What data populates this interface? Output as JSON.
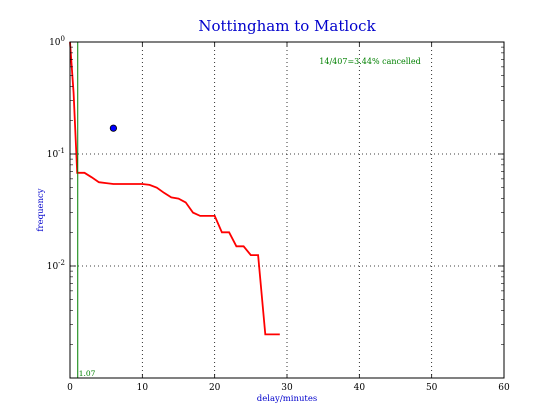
{
  "chart_data": {
    "type": "line",
    "title": "Nottingham to Matlock",
    "xlabel": "delay/minutes",
    "ylabel": "frequency",
    "xlim": [
      0,
      60
    ],
    "ylim": [
      0.001,
      1.0
    ],
    "yscale": "log",
    "grid": true,
    "x_ticks": [
      0,
      10,
      20,
      30,
      40,
      50,
      60
    ],
    "x_tick_labels": [
      "0",
      "10",
      "20",
      "30",
      "40",
      "50",
      "60"
    ],
    "y_ticks": [
      1.0,
      0.1,
      0.01
    ],
    "annotation": "14/407=3.44% cancelled",
    "vline_label": "1.07",
    "series": [
      {
        "kind": "step-line",
        "color": "#ff0000",
        "x": [
          0,
          0.5,
          1,
          2,
          3,
          4,
          5,
          6,
          7,
          8,
          9,
          10,
          11,
          12,
          13,
          14,
          15,
          16,
          17,
          18,
          19,
          20,
          21,
          22,
          23,
          24,
          25,
          26,
          27,
          28,
          29
        ],
        "y": [
          1.0,
          0.35,
          0.068,
          0.068,
          0.062,
          0.056,
          0.055,
          0.054,
          0.054,
          0.054,
          0.054,
          0.054,
          0.053,
          0.05,
          0.045,
          0.041,
          0.04,
          0.037,
          0.03,
          0.028,
          0.028,
          0.028,
          0.02,
          0.02,
          0.015,
          0.015,
          0.0125,
          0.0125,
          0.00245,
          0.00245,
          0.00245
        ]
      },
      {
        "kind": "point",
        "color": "#0000ff",
        "x": [
          6
        ],
        "y": [
          0.17
        ]
      },
      {
        "kind": "vline",
        "color": "#008000",
        "x": [
          1.07
        ]
      }
    ]
  }
}
